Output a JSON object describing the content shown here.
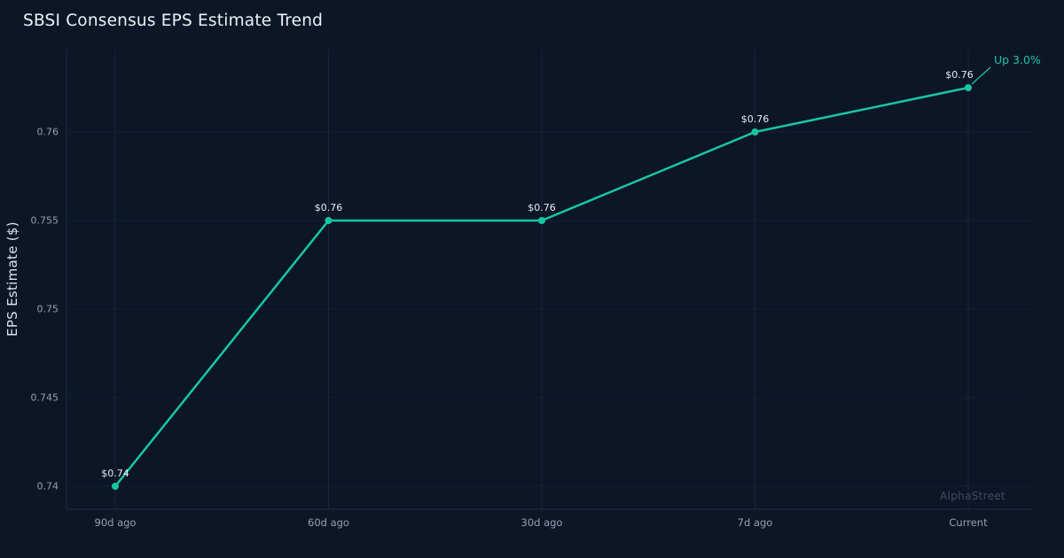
{
  "page": {
    "watermark": "AlphaStreet"
  },
  "chart_data": {
    "type": "line",
    "title": "SBSI Consensus EPS Estimate Trend",
    "xlabel": "",
    "ylabel": "EPS Estimate ($)",
    "categories": [
      "90d ago",
      "60d ago",
      "30d ago",
      "7d ago",
      "Current"
    ],
    "series": [
      {
        "name": "Consensus EPS Estimate",
        "values": [
          0.74,
          0.755,
          0.755,
          0.76,
          0.7625
        ],
        "point_labels": [
          "$0.74",
          "$0.76",
          "$0.76",
          "$0.76",
          "$0.76"
        ]
      }
    ],
    "yticks": [
      0.74,
      0.745,
      0.75,
      0.755,
      0.76
    ],
    "ytick_labels": [
      "0.74",
      "0.745",
      "0.75",
      "0.755",
      "0.76"
    ],
    "ylim": [
      0.7387,
      0.7646
    ],
    "grid": true,
    "legend": false,
    "annotation": {
      "label": "Up 3.0%"
    },
    "colors": {
      "background": "#0d1627",
      "line": "#19c6a4",
      "annotation": "#19c6a4",
      "grid": "#233154",
      "tick_text": "#94a0b2",
      "point_label_text": "#e8edf4",
      "watermark": "#3f4c63"
    }
  }
}
